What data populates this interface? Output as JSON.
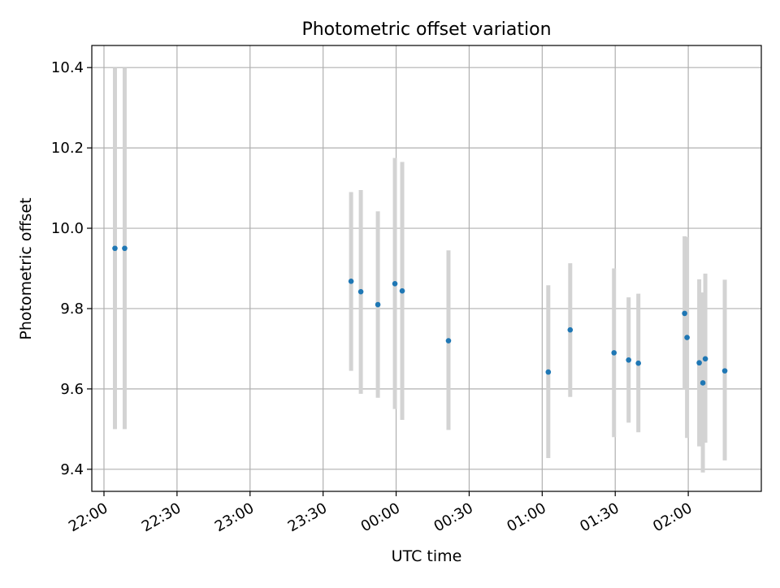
{
  "chart_data": {
    "type": "scatter",
    "title": "Photometric offset variation",
    "xlabel": "UTC time",
    "ylabel": "Photometric offset",
    "x_ticks": [
      "22:00",
      "22:30",
      "23:00",
      "23:30",
      "00:00",
      "00:30",
      "01:00",
      "01:30",
      "02:00"
    ],
    "y_ticks": [
      "9.4",
      "9.6",
      "9.8",
      "10.0",
      "10.2",
      "10.4"
    ],
    "xlim": [
      "21:55",
      "02:30"
    ],
    "ylim": [
      9.345,
      10.455
    ],
    "grid": true,
    "colors": {
      "point": "#1f77b4",
      "errorbar": "#d3d3d3",
      "grid": "#b0b0b0"
    },
    "points": [
      {
        "x": "22:04:30",
        "y": 9.95,
        "ylo": 9.5,
        "yhi": 10.4
      },
      {
        "x": "22:08:30",
        "y": 9.95,
        "ylo": 9.5,
        "yhi": 10.4
      },
      {
        "x": "23:41:30",
        "y": 9.868,
        "ylo": 9.645,
        "yhi": 10.09
      },
      {
        "x": "23:45:30",
        "y": 9.842,
        "ylo": 9.588,
        "yhi": 10.095
      },
      {
        "x": "23:52:30",
        "y": 9.81,
        "ylo": 9.578,
        "yhi": 10.042
      },
      {
        "x": "23:59:30",
        "y": 9.862,
        "ylo": 9.55,
        "yhi": 10.175
      },
      {
        "x": "00:02:30",
        "y": 9.844,
        "ylo": 9.523,
        "yhi": 10.165
      },
      {
        "x": "00:21:30",
        "y": 9.72,
        "ylo": 9.498,
        "yhi": 9.945
      },
      {
        "x": "01:02:30",
        "y": 9.642,
        "ylo": 9.428,
        "yhi": 9.858
      },
      {
        "x": "01:11:30",
        "y": 9.747,
        "ylo": 9.58,
        "yhi": 9.913
      },
      {
        "x": "01:29:30",
        "y": 9.69,
        "ylo": 9.48,
        "yhi": 9.9
      },
      {
        "x": "01:35:30",
        "y": 9.672,
        "ylo": 9.516,
        "yhi": 9.828
      },
      {
        "x": "01:39:30",
        "y": 9.664,
        "ylo": 9.492,
        "yhi": 9.837
      },
      {
        "x": "01:58:30",
        "y": 9.788,
        "ylo": 9.598,
        "yhi": 9.98
      },
      {
        "x": "01:59:30",
        "y": 9.728,
        "ylo": 9.478,
        "yhi": 9.978
      },
      {
        "x": "02:04:30",
        "y": 9.665,
        "ylo": 9.457,
        "yhi": 9.873
      },
      {
        "x": "02:06:00",
        "y": 9.615,
        "ylo": 9.392,
        "yhi": 9.84
      },
      {
        "x": "02:07:00",
        "y": 9.675,
        "ylo": 9.466,
        "yhi": 9.887
      },
      {
        "x": "02:15:00",
        "y": 9.645,
        "ylo": 9.422,
        "yhi": 9.872
      }
    ]
  }
}
